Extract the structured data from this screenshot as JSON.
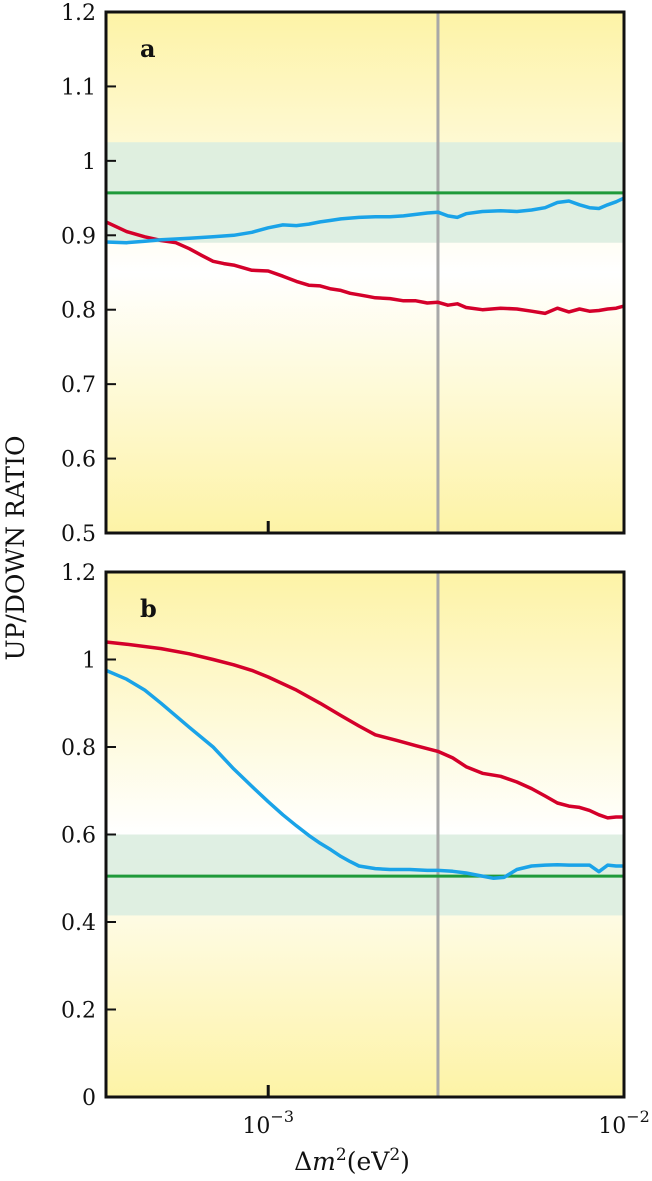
{
  "chart_data": {
    "type": "line",
    "ylabel": "UP/DOWN RATIO",
    "xlabel_parts": {
      "delta": "Δ",
      "m": "m",
      "sup2": "2",
      "unit_open": "(eV",
      "unit_sup": "2",
      "unit_close": ")"
    },
    "x_scale": "log",
    "xlim": [
      0.00035,
      0.01
    ],
    "x_ticks": [
      {
        "value": 0.001,
        "base": "10",
        "exp": "−3"
      },
      {
        "value": 0.01,
        "base": "10",
        "exp": "−2"
      }
    ],
    "vertical_line_x": 0.003,
    "colors": {
      "red": "#d4002a",
      "blue": "#1aa3e8",
      "green": "#1f9a3a",
      "band": "#dcede0",
      "grey": "#a8a8a8"
    },
    "panels": [
      {
        "label": "a",
        "ylim": [
          0.5,
          1.2
        ],
        "y_ticks": [
          "0.5",
          "0.6",
          "0.7",
          "0.8",
          "0.9",
          "1",
          "1.1",
          "1.2"
        ],
        "y_tick_values": [
          0.5,
          0.6,
          0.7,
          0.8,
          0.9,
          1.0,
          1.1,
          1.2
        ],
        "band": [
          0.89,
          1.025
        ],
        "hline": 0.957,
        "series": [
          {
            "color": "red",
            "x": [
              0.00035,
              0.0004,
              0.00045,
              0.0005,
              0.00055,
              0.0006,
              0.00065,
              0.0007,
              0.00075,
              0.0008,
              0.0009,
              0.001,
              0.0011,
              0.0012,
              0.0013,
              0.0014,
              0.0015,
              0.0016,
              0.0017,
              0.0018,
              0.0019,
              0.002,
              0.0022,
              0.0024,
              0.0026,
              0.0028,
              0.003,
              0.0032,
              0.0034,
              0.0036,
              0.004,
              0.0045,
              0.005,
              0.0055,
              0.006,
              0.0065,
              0.007,
              0.0075,
              0.008,
              0.0085,
              0.009,
              0.0095,
              0.01
            ],
            "y": [
              0.918,
              0.905,
              0.898,
              0.893,
              0.89,
              0.882,
              0.873,
              0.865,
              0.862,
              0.86,
              0.853,
              0.852,
              0.845,
              0.838,
              0.833,
              0.832,
              0.828,
              0.826,
              0.822,
              0.82,
              0.818,
              0.816,
              0.815,
              0.812,
              0.812,
              0.809,
              0.81,
              0.806,
              0.808,
              0.803,
              0.8,
              0.802,
              0.801,
              0.798,
              0.795,
              0.802,
              0.797,
              0.801,
              0.798,
              0.799,
              0.801,
              0.802,
              0.805
            ]
          },
          {
            "color": "blue",
            "x": [
              0.00035,
              0.0004,
              0.00045,
              0.0005,
              0.00055,
              0.0006,
              0.0007,
              0.0008,
              0.0009,
              0.001,
              0.0011,
              0.0012,
              0.0013,
              0.0014,
              0.0015,
              0.0016,
              0.0018,
              0.002,
              0.0022,
              0.0024,
              0.0026,
              0.0028,
              0.003,
              0.0032,
              0.0034,
              0.0036,
              0.004,
              0.0045,
              0.005,
              0.0055,
              0.006,
              0.0065,
              0.007,
              0.0075,
              0.008,
              0.0085,
              0.009,
              0.0095,
              0.01
            ],
            "y": [
              0.891,
              0.89,
              0.892,
              0.894,
              0.895,
              0.896,
              0.898,
              0.9,
              0.904,
              0.91,
              0.914,
              0.913,
              0.915,
              0.918,
              0.92,
              0.922,
              0.924,
              0.925,
              0.925,
              0.926,
              0.928,
              0.93,
              0.931,
              0.926,
              0.924,
              0.929,
              0.932,
              0.933,
              0.932,
              0.934,
              0.937,
              0.944,
              0.946,
              0.941,
              0.937,
              0.936,
              0.941,
              0.945,
              0.95
            ]
          }
        ]
      },
      {
        "label": "b",
        "ylim": [
          0,
          1.2
        ],
        "y_ticks": [
          "0",
          "0.2",
          "0.4",
          "0.6",
          "0.8",
          "1",
          "1.2"
        ],
        "y_tick_values": [
          0,
          0.2,
          0.4,
          0.6,
          0.8,
          1.0,
          1.2
        ],
        "band": [
          0.415,
          0.6
        ],
        "hline": 0.505,
        "series": [
          {
            "color": "red",
            "x": [
              0.00035,
              0.0004,
              0.0005,
              0.0006,
              0.0007,
              0.0008,
              0.0009,
              0.001,
              0.0012,
              0.0014,
              0.0016,
              0.0018,
              0.002,
              0.0023,
              0.0026,
              0.003,
              0.0033,
              0.0036,
              0.004,
              0.0045,
              0.005,
              0.0055,
              0.006,
              0.0065,
              0.007,
              0.0075,
              0.008,
              0.0085,
              0.009,
              0.0095,
              0.01
            ],
            "y": [
              1.04,
              1.035,
              1.025,
              1.013,
              1.0,
              0.988,
              0.975,
              0.96,
              0.93,
              0.9,
              0.872,
              0.848,
              0.828,
              0.815,
              0.803,
              0.79,
              0.775,
              0.755,
              0.74,
              0.733,
              0.72,
              0.705,
              0.688,
              0.672,
              0.665,
              0.662,
              0.655,
              0.645,
              0.638,
              0.64,
              0.64
            ]
          },
          {
            "color": "blue",
            "x": [
              0.00035,
              0.0004,
              0.00045,
              0.0005,
              0.0006,
              0.0007,
              0.0008,
              0.0009,
              0.001,
              0.0011,
              0.0012,
              0.0013,
              0.0014,
              0.0015,
              0.0016,
              0.0017,
              0.0018,
              0.002,
              0.0022,
              0.0025,
              0.0028,
              0.003,
              0.0033,
              0.0036,
              0.004,
              0.0043,
              0.0046,
              0.005,
              0.0055,
              0.006,
              0.0065,
              0.007,
              0.0075,
              0.008,
              0.0085,
              0.009,
              0.0095,
              0.01
            ],
            "y": [
              0.975,
              0.955,
              0.93,
              0.9,
              0.845,
              0.8,
              0.75,
              0.71,
              0.675,
              0.645,
              0.62,
              0.598,
              0.58,
              0.565,
              0.55,
              0.538,
              0.528,
              0.522,
              0.52,
              0.52,
              0.518,
              0.518,
              0.516,
              0.512,
              0.505,
              0.5,
              0.502,
              0.52,
              0.528,
              0.53,
              0.531,
              0.53,
              0.53,
              0.53,
              0.515,
              0.53,
              0.528,
              0.528
            ]
          }
        ]
      }
    ]
  }
}
